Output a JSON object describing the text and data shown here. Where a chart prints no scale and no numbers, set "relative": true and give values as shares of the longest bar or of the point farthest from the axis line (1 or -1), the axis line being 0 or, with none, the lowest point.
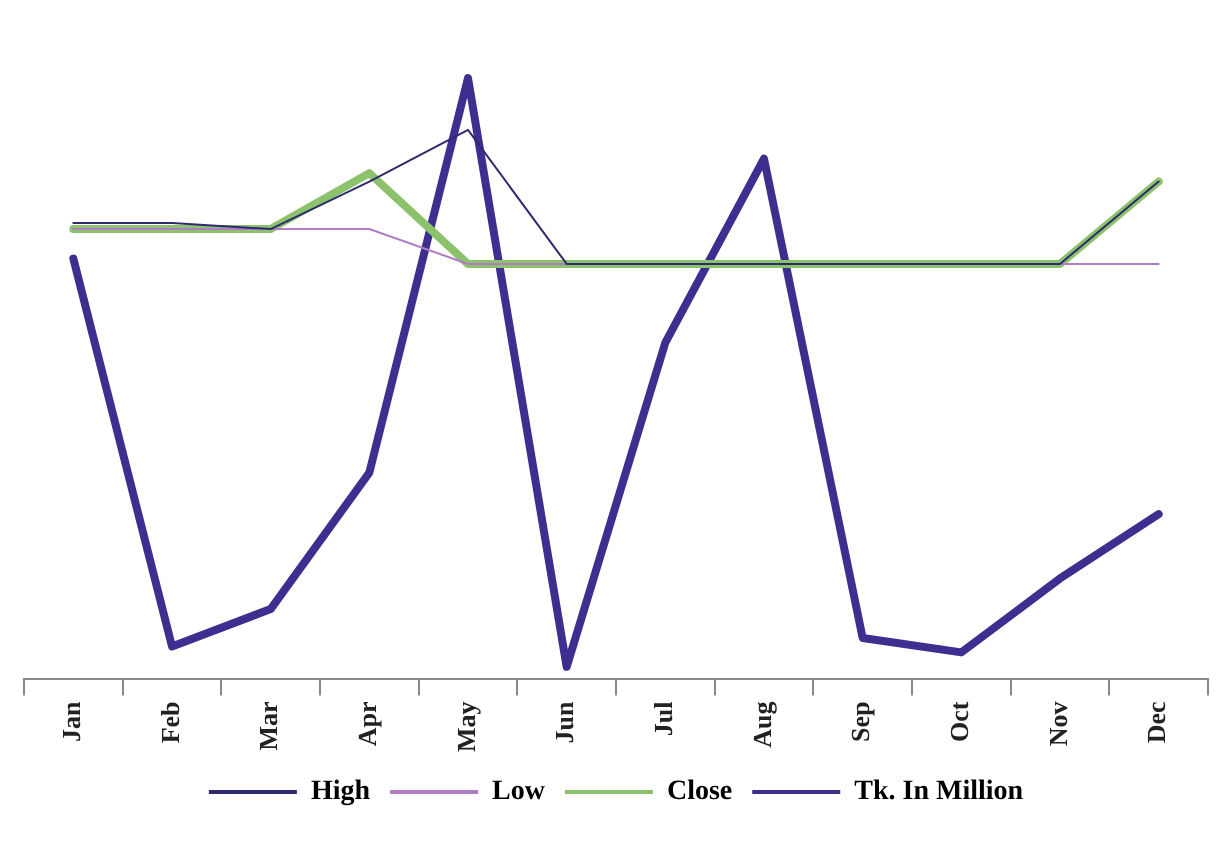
{
  "chart_data": {
    "type": "line",
    "relative": true,
    "categories": [
      "Jan",
      "Feb",
      "Mar",
      "Apr",
      "May",
      "Jun",
      "Jul",
      "Aug",
      "Sep",
      "Oct",
      "Nov",
      "Dec"
    ],
    "series": [
      {
        "name": "High",
        "color": "#2e2a6e",
        "values": [
          0.759,
          0.759,
          0.749,
          0.828,
          0.914,
          0.691,
          0.691,
          0.691,
          0.691,
          0.691,
          0.691,
          0.828
        ]
      },
      {
        "name": "Low",
        "color": "#b07cc6",
        "values": [
          0.749,
          0.749,
          0.749,
          0.749,
          0.691,
          0.691,
          null,
          null,
          null,
          null,
          0.691,
          0.691
        ]
      },
      {
        "name": "Close",
        "color": "#8dc26c",
        "values": [
          0.749,
          0.749,
          0.749,
          0.842,
          0.691,
          0.691,
          0.691,
          0.691,
          0.691,
          0.691,
          0.691,
          0.828
        ]
      },
      {
        "name": "Tk. In Million",
        "color": "#3c2f8f",
        "values": [
          0.7,
          0.055,
          0.117,
          0.344,
          1,
          0.021,
          0.56,
          0.866,
          0.069,
          0.045,
          0.168,
          0.275
        ]
      }
    ],
    "legend": "bottom",
    "marker": "none",
    "line_style": "solid"
  }
}
